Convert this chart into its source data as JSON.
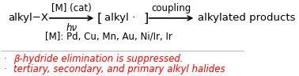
{
  "background_color": "#ffffff",
  "arrow1_label_top": "[M] (cat)",
  "arrow1_label_bottom": "hν",
  "arrow2_label": "coupling",
  "end_text": "alkylated products",
  "metals_line": "[M]: Pd, Cu, Mn, Au, Ni/Ir, Ir",
  "bullet1_text": "β-hydride elimination is suppressed.",
  "bullet2_text": "tertiary, secondary, and primary alkyl halides",
  "red_color": "#ff0000",
  "black_color": "#000000",
  "fontsize_main": 9.5,
  "fontsize_sub": 8.5,
  "fontsize_red": 8.5
}
